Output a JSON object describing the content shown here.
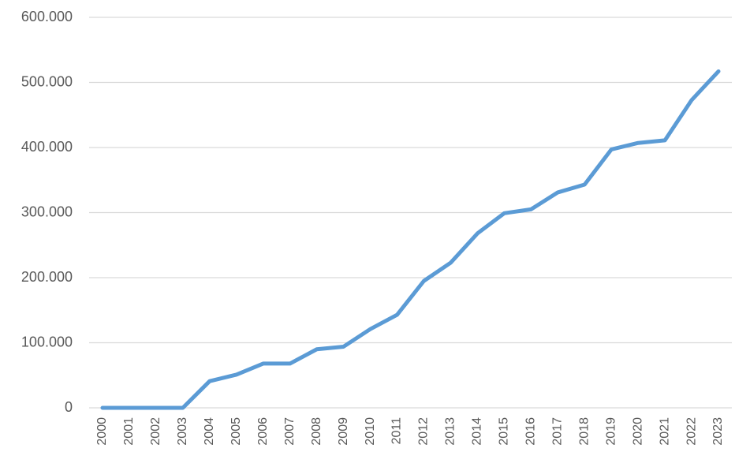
{
  "chart_data": {
    "type": "line",
    "x": [
      2000,
      2001,
      2002,
      2003,
      2004,
      2005,
      2006,
      2007,
      2008,
      2009,
      2010,
      2011,
      2012,
      2013,
      2014,
      2015,
      2016,
      2017,
      2018,
      2019,
      2020,
      2021,
      2022,
      2023
    ],
    "values": [
      0,
      0,
      0,
      0,
      41000,
      51000,
      68000,
      68000,
      90000,
      94000,
      121000,
      143000,
      195000,
      223000,
      268000,
      299000,
      305000,
      331000,
      343000,
      397000,
      407000,
      411000,
      473000,
      517000
    ],
    "color": "#5b9bd5",
    "ylim": [
      0,
      600000
    ],
    "yticks": [
      0,
      {
        "value": 100000,
        "label": "100.000"
      },
      {
        "value": 200000,
        "label": "200.000"
      },
      {
        "value": 300000,
        "label": "300.000"
      },
      {
        "value": 400000,
        "label": "400.000"
      },
      {
        "value": 500000,
        "label": "500.000"
      },
      {
        "value": 600000,
        "label": "600.000"
      }
    ],
    "grid": true
  }
}
